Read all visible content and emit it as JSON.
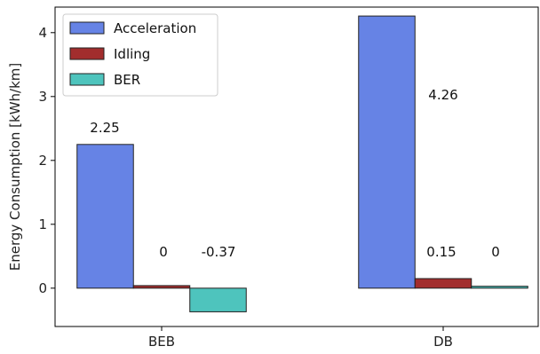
{
  "chart_data": {
    "type": "bar",
    "ylabel": "Energy Consumption [kWh/km]",
    "categories": [
      "BEB",
      "DB"
    ],
    "series": [
      {
        "name": "Acceleration",
        "values": [
          2.25,
          4.26
        ],
        "labels": [
          "2.25",
          "4.26"
        ],
        "color": "#6683e5"
      },
      {
        "name": "Idling",
        "values": [
          0.04,
          0.15
        ],
        "labels": [
          "0",
          "0.15"
        ],
        "color": "#a22d2d"
      },
      {
        "name": "BER",
        "values": [
          -0.37,
          0.03
        ],
        "labels": [
          "-0.37",
          "0"
        ],
        "color": "#4ec4bd"
      }
    ],
    "ylim": [
      -0.6,
      4.4
    ],
    "yticks": [
      0,
      1,
      2,
      3,
      4
    ],
    "legend": "top-left",
    "grid": false
  }
}
